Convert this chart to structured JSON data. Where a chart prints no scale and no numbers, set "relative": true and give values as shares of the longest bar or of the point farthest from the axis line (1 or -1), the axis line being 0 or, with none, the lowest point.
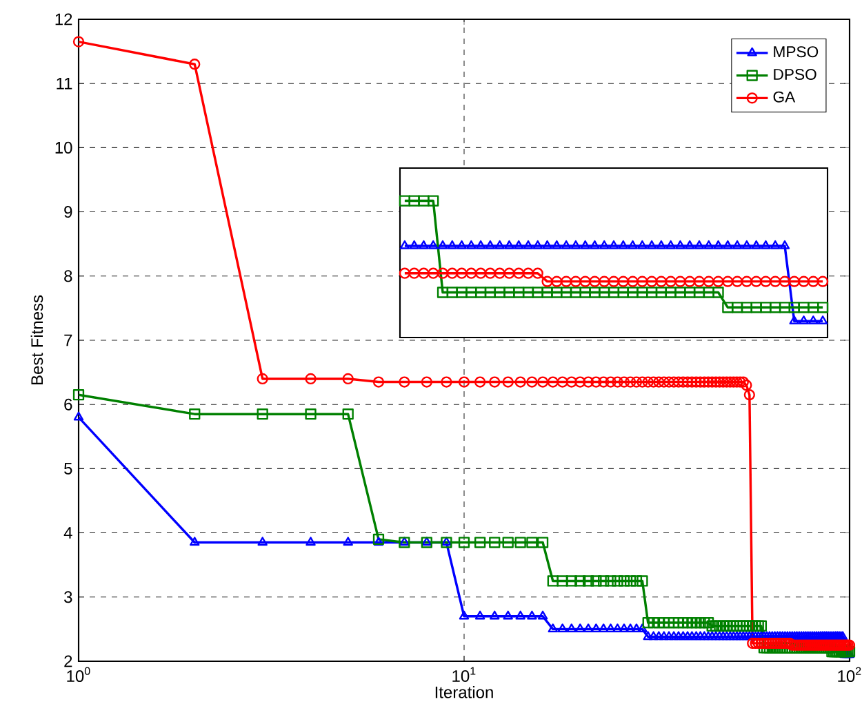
{
  "chart_data": [
    {
      "type": "line",
      "xlabel": "Iteration",
      "ylabel": "Best Fitness",
      "log": "x",
      "grid": true,
      "legend": "top right",
      "xlim": [
        1,
        100
      ],
      "ylim": [
        2,
        12
      ],
      "xticks": [
        {
          "value": 1,
          "label": "10$^{0}$"
        },
        {
          "value": 10,
          "label": "10$^{1}$"
        },
        {
          "value": 100,
          "label": "10$^{2}$"
        }
      ],
      "yticks": [
        2,
        3,
        4,
        5,
        6,
        7,
        8,
        9,
        10,
        11,
        12
      ],
      "x": [
        1,
        2,
        3,
        4,
        5,
        6,
        7,
        8,
        9,
        10,
        11,
        12,
        13,
        14,
        15,
        16,
        17,
        18,
        19,
        20,
        21,
        22,
        23,
        24,
        25,
        26,
        27,
        28,
        29,
        30,
        31,
        32,
        33,
        34,
        35,
        36,
        37,
        38,
        39,
        40,
        41,
        42,
        43,
        44,
        45,
        46,
        47,
        48,
        49,
        50,
        51,
        52,
        53,
        54,
        55,
        56,
        57,
        58,
        59,
        60,
        61,
        62,
        63,
        64,
        65,
        66,
        67,
        68,
        69,
        70,
        71,
        72,
        73,
        74,
        75,
        76,
        77,
        78,
        79,
        80,
        81,
        82,
        83,
        84,
        85,
        86,
        87,
        88,
        89,
        90,
        91,
        92,
        93,
        94,
        95,
        96,
        97,
        98,
        99,
        100
      ],
      "series": [
        {
          "name": "MPSO",
          "color": "#0000ff",
          "marker": "triangle",
          "values": [
            5.8,
            3.85,
            3.85,
            3.85,
            3.85,
            3.85,
            3.85,
            3.85,
            3.85,
            2.7,
            2.7,
            2.7,
            2.7,
            2.7,
            2.7,
            2.7,
            2.5,
            2.5,
            2.5,
            2.5,
            2.5,
            2.5,
            2.5,
            2.5,
            2.5,
            2.5,
            2.5,
            2.5,
            2.5,
            2.38,
            2.38,
            2.38,
            2.38,
            2.38,
            2.38,
            2.38,
            2.38,
            2.38,
            2.38,
            2.38,
            2.38,
            2.38,
            2.38,
            2.38,
            2.38,
            2.38,
            2.38,
            2.38,
            2.38,
            2.38,
            2.38,
            2.38,
            2.38,
            2.38,
            2.38,
            2.38,
            2.38,
            2.38,
            2.38,
            2.38,
            2.38,
            2.38,
            2.38,
            2.38,
            2.38,
            2.38,
            2.38,
            2.38,
            2.38,
            2.38,
            2.38,
            2.38,
            2.38,
            2.38,
            2.38,
            2.38,
            2.38,
            2.38,
            2.38,
            2.38,
            2.38,
            2.38,
            2.38,
            2.38,
            2.38,
            2.38,
            2.38,
            2.38,
            2.38,
            2.38,
            2.38,
            2.38,
            2.38,
            2.38,
            2.38,
            2.38,
            2.1,
            2.1,
            2.1,
            2.1
          ]
        },
        {
          "name": "DPSO",
          "color": "#008000",
          "marker": "square",
          "values": [
            6.15,
            5.85,
            5.85,
            5.85,
            5.85,
            3.9,
            3.85,
            3.85,
            3.85,
            3.85,
            3.85,
            3.85,
            3.85,
            3.85,
            3.85,
            3.85,
            3.25,
            3.25,
            3.25,
            3.25,
            3.25,
            3.25,
            3.25,
            3.25,
            3.25,
            3.25,
            3.25,
            3.25,
            3.25,
            2.6,
            2.6,
            2.6,
            2.6,
            2.6,
            2.6,
            2.6,
            2.6,
            2.6,
            2.6,
            2.6,
            2.6,
            2.6,
            2.6,
            2.55,
            2.55,
            2.55,
            2.55,
            2.55,
            2.55,
            2.55,
            2.55,
            2.55,
            2.55,
            2.55,
            2.55,
            2.55,
            2.55,
            2.55,
            2.55,
            2.21,
            2.21,
            2.21,
            2.21,
            2.21,
            2.21,
            2.21,
            2.21,
            2.21,
            2.21,
            2.21,
            2.21,
            2.21,
            2.21,
            2.21,
            2.21,
            2.21,
            2.21,
            2.21,
            2.21,
            2.21,
            2.21,
            2.21,
            2.21,
            2.21,
            2.21,
            2.21,
            2.21,
            2.21,
            2.21,
            2.15,
            2.15,
            2.15,
            2.15,
            2.15,
            2.15,
            2.15,
            2.15,
            2.15,
            2.15,
            2.15
          ]
        },
        {
          "name": "GA",
          "color": "#ff0000",
          "marker": "circle",
          "values": [
            11.65,
            11.3,
            6.4,
            6.4,
            6.4,
            6.35,
            6.35,
            6.35,
            6.35,
            6.35,
            6.35,
            6.35,
            6.35,
            6.35,
            6.35,
            6.35,
            6.35,
            6.35,
            6.35,
            6.35,
            6.35,
            6.35,
            6.35,
            6.35,
            6.35,
            6.35,
            6.35,
            6.35,
            6.35,
            6.35,
            6.35,
            6.35,
            6.35,
            6.35,
            6.35,
            6.35,
            6.35,
            6.35,
            6.35,
            6.35,
            6.35,
            6.35,
            6.35,
            6.35,
            6.35,
            6.35,
            6.35,
            6.35,
            6.35,
            6.35,
            6.35,
            6.35,
            6.35,
            6.3,
            6.15,
            2.28,
            2.28,
            2.28,
            2.28,
            2.28,
            2.28,
            2.28,
            2.28,
            2.28,
            2.28,
            2.28,
            2.28,
            2.28,
            2.28,
            2.28,
            2.25,
            2.25,
            2.25,
            2.25,
            2.25,
            2.25,
            2.25,
            2.25,
            2.25,
            2.25,
            2.25,
            2.25,
            2.25,
            2.25,
            2.25,
            2.25,
            2.25,
            2.25,
            2.25,
            2.25,
            2.25,
            2.25,
            2.25,
            2.25,
            2.25,
            2.25,
            2.25,
            2.25,
            2.25,
            2.25
          ]
        }
      ]
    },
    {
      "type": "line",
      "relative": true,
      "categories": [
        null,
        null,
        null,
        null,
        null,
        null,
        null,
        null,
        null,
        null,
        null,
        null,
        null,
        null,
        null,
        null,
        null,
        null,
        null,
        null,
        null,
        null,
        null,
        null,
        null,
        null,
        null,
        null,
        null,
        null,
        null,
        null,
        null,
        null,
        null,
        null,
        null,
        null,
        null,
        null,
        null,
        null,
        null,
        null,
        null
      ],
      "series": [
        {
          "color": "#0000ff",
          "marker": "triangle",
          "values": [
            0.67,
            0.67,
            0.67,
            0.67,
            0.67,
            0.67,
            0.67,
            0.67,
            0.67,
            0.67,
            0.67,
            0.67,
            0.67,
            0.67,
            0.67,
            0.67,
            0.67,
            0.67,
            0.67,
            0.67,
            0.67,
            0.67,
            0.67,
            0.67,
            0.67,
            0.67,
            0.67,
            0.67,
            0.67,
            0.67,
            0.67,
            0.67,
            0.67,
            0.67,
            0.67,
            0.67,
            0.67,
            0.67,
            0.67,
            0.67,
            0.67,
            0.12,
            0.12,
            0.12,
            0.12
          ]
        },
        {
          "color": "#008000",
          "marker": "square",
          "values": [
            1,
            1,
            1,
            1,
            0.33,
            0.33,
            0.33,
            0.33,
            0.33,
            0.33,
            0.33,
            0.33,
            0.33,
            0.33,
            0.33,
            0.33,
            0.33,
            0.33,
            0.33,
            0.33,
            0.33,
            0.33,
            0.33,
            0.33,
            0.33,
            0.33,
            0.33,
            0.33,
            0.33,
            0.33,
            0.33,
            0.33,
            0.33,
            0.33,
            0.22,
            0.22,
            0.22,
            0.22,
            0.22,
            0.22,
            0.22,
            0.22,
            0.22,
            0.22,
            0.22
          ]
        },
        {
          "color": "#ff0000",
          "marker": "circle",
          "values": [
            0.47,
            0.47,
            0.47,
            0.47,
            0.47,
            0.47,
            0.47,
            0.47,
            0.47,
            0.47,
            0.47,
            0.47,
            0.47,
            0.47,
            0.47,
            0.41,
            0.41,
            0.41,
            0.41,
            0.41,
            0.41,
            0.41,
            0.41,
            0.41,
            0.41,
            0.41,
            0.41,
            0.41,
            0.41,
            0.41,
            0.41,
            0.41,
            0.41,
            0.41,
            0.41,
            0.41,
            0.41,
            0.41,
            0.41,
            0.41,
            0.41,
            0.41,
            0.41,
            0.41,
            0.41
          ]
        }
      ]
    }
  ]
}
